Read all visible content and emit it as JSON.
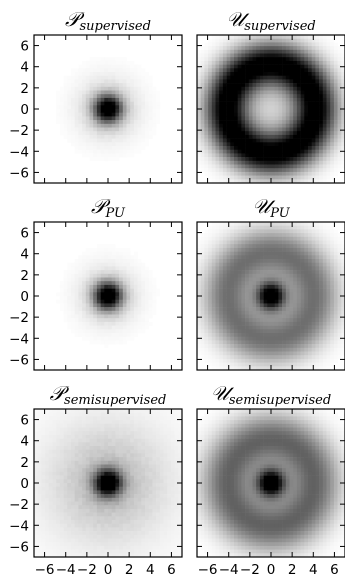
{
  "chart_data": [
    {
      "type": "heatmap",
      "title": "𝒫supervised",
      "title_main": "𝒫",
      "title_sub": "supervised",
      "distribution": "centered blob",
      "xlim": [
        -7,
        7
      ],
      "ylim": [
        -7,
        7
      ],
      "x_ticks": [
        -6,
        -4,
        -2,
        0,
        2,
        4,
        6
      ],
      "y_ticks": [
        -6,
        -4,
        -2,
        0,
        2,
        4,
        6
      ],
      "core_radius": 0.9,
      "spread": 2.0,
      "background_level": 0.0
    },
    {
      "type": "heatmap",
      "title": "𝒰supervised",
      "title_main": "𝒰",
      "title_sub": "supervised",
      "distribution": "ring",
      "xlim": [
        -7,
        7
      ],
      "ylim": [
        -7,
        7
      ],
      "x_ticks": [
        -6,
        -4,
        -2,
        0,
        2,
        4,
        6
      ],
      "y_ticks": [
        -6,
        -4,
        -2,
        0,
        2,
        4,
        6
      ],
      "ring_radius": 4.2,
      "ring_width": 1.5,
      "center_level": 0.15
    },
    {
      "type": "heatmap",
      "title": "𝒫PU",
      "title_main": "𝒫",
      "title_sub": "PU",
      "distribution": "centered blob",
      "xlim": [
        -7,
        7
      ],
      "ylim": [
        -7,
        7
      ],
      "x_ticks": [
        -6,
        -4,
        -2,
        0,
        2,
        4,
        6
      ],
      "y_ticks": [
        -6,
        -4,
        -2,
        0,
        2,
        4,
        6
      ],
      "core_radius": 0.9,
      "spread": 1.9,
      "background_level": 0.0
    },
    {
      "type": "heatmap",
      "title": "𝒰PU",
      "title_main": "𝒰",
      "title_sub": "PU",
      "distribution": "blob plus ring",
      "xlim": [
        -7,
        7
      ],
      "ylim": [
        -7,
        7
      ],
      "x_ticks": [
        -6,
        -4,
        -2,
        0,
        2,
        4,
        6
      ],
      "y_ticks": [
        -6,
        -4,
        -2,
        0,
        2,
        4,
        6
      ],
      "core_radius": 0.9,
      "ring_radius": 4.2,
      "ring_width": 1.6,
      "ring_level": 0.5
    },
    {
      "type": "heatmap",
      "title": "𝒫semisupervised",
      "title_main": "𝒫",
      "title_sub": "semisupervised",
      "distribution": "centered blob with wide halo",
      "xlim": [
        -7,
        7
      ],
      "ylim": [
        -7,
        7
      ],
      "x_ticks": [
        -6,
        -4,
        -2,
        0,
        2,
        4,
        6
      ],
      "y_ticks": [
        -6,
        -4,
        -2,
        0,
        2,
        4,
        6
      ],
      "core_radius": 0.9,
      "spread": 3.5,
      "halo_level": 0.2
    },
    {
      "type": "heatmap",
      "title": "𝒰semisupervised",
      "title_main": "𝒰",
      "title_sub": "semisupervised",
      "distribution": "blob plus ring",
      "xlim": [
        -7,
        7
      ],
      "ylim": [
        -7,
        7
      ],
      "x_ticks": [
        -6,
        -4,
        -2,
        0,
        2,
        4,
        6
      ],
      "y_ticks": [
        -6,
        -4,
        -2,
        0,
        2,
        4,
        6
      ],
      "core_radius": 0.9,
      "ring_radius": 4.2,
      "ring_width": 1.7,
      "ring_level": 0.55
    }
  ],
  "colormap": [
    "#ffffff",
    "#000000"
  ],
  "tick_labels": [
    "-6",
    "-4",
    "-2",
    "0",
    "2",
    "4",
    "6"
  ]
}
